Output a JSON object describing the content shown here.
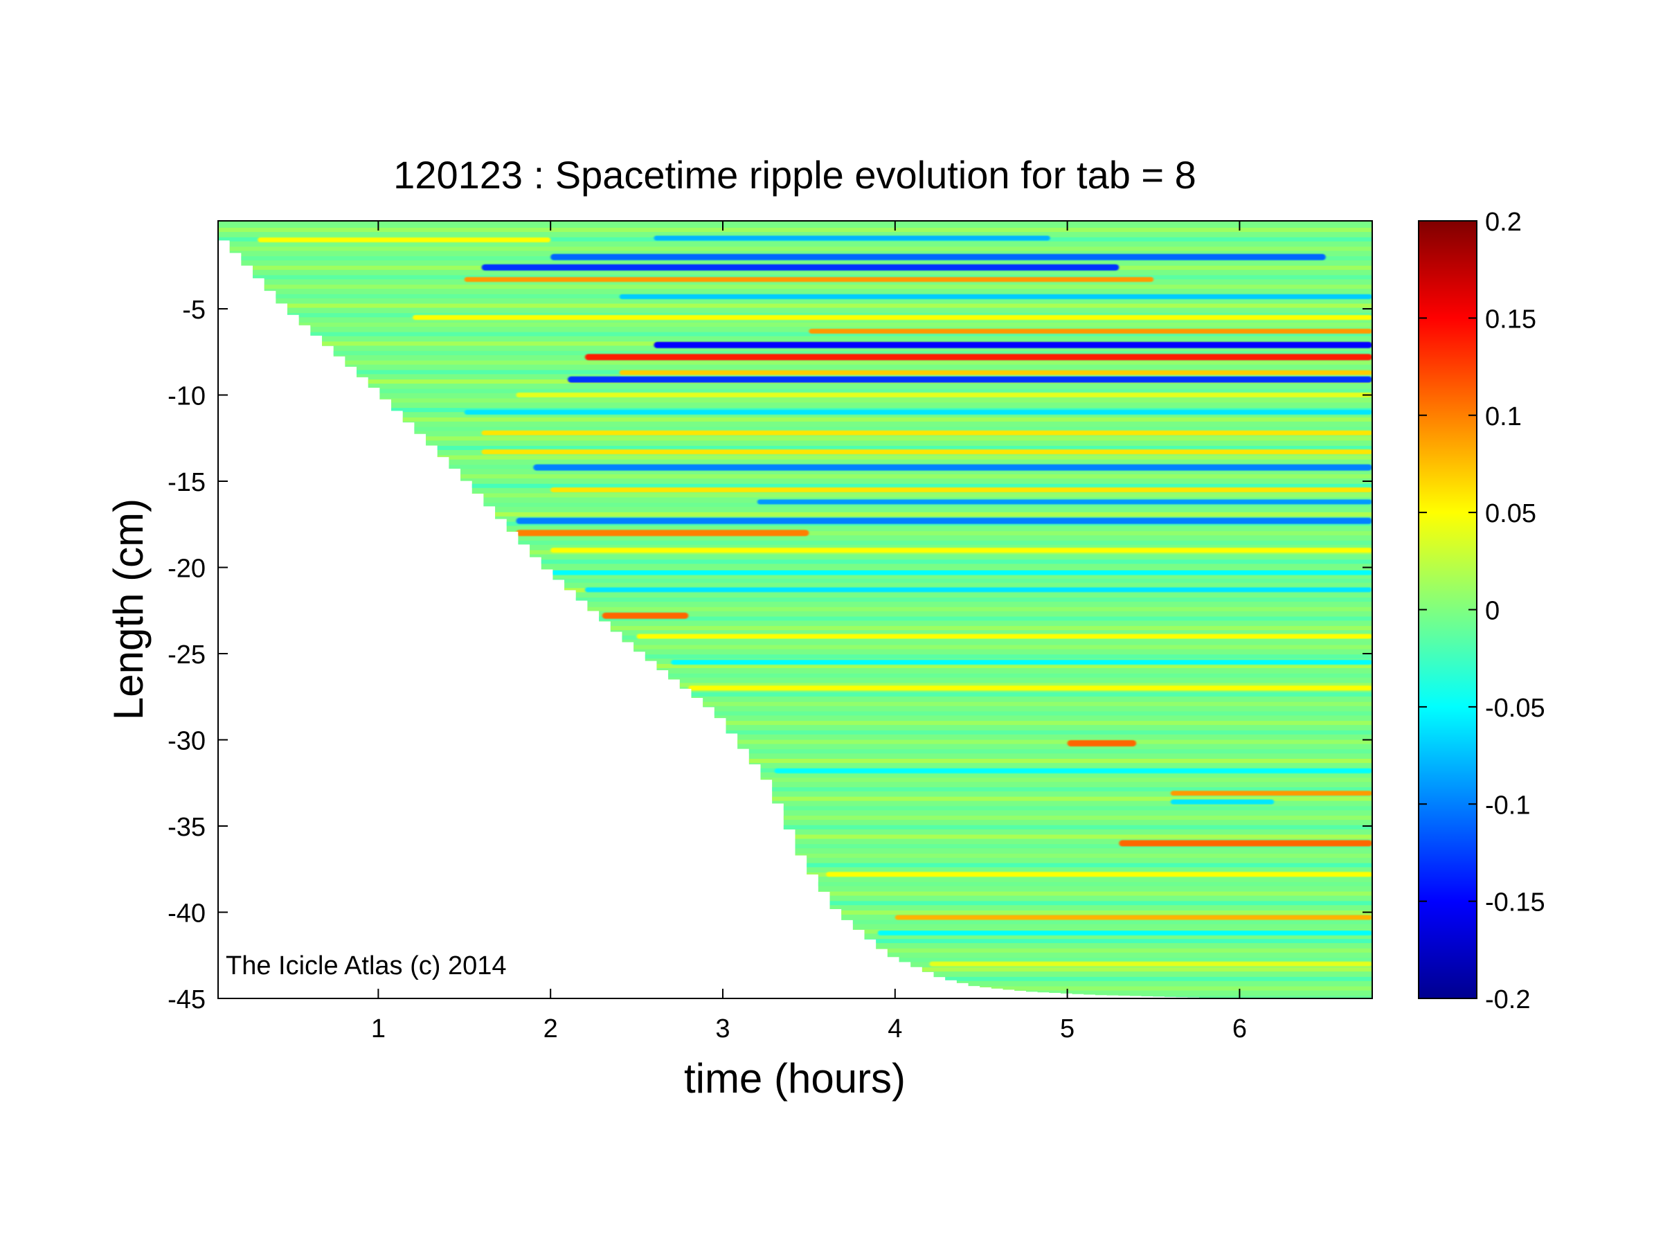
{
  "chart_data": {
    "type": "heatmap",
    "title": "120123 : Spacetime ripple evolution for tab = 8",
    "xlabel": "time (hours)",
    "ylabel": "Length (cm)",
    "xlim": [
      0.07,
      6.77
    ],
    "ylim": [
      -45,
      0.1
    ],
    "x_ticks": [
      1,
      2,
      3,
      4,
      5,
      6
    ],
    "x_tick_labels": [
      "1",
      "2",
      "3",
      "4",
      "5",
      "6"
    ],
    "y_ticks": [
      -5,
      -10,
      -15,
      -20,
      -25,
      -30,
      -35,
      -40,
      -45
    ],
    "y_tick_labels": [
      "-5",
      "-10",
      "-15",
      "-20",
      "-25",
      "-30",
      "-35",
      "-40",
      "-45"
    ],
    "colorbar": {
      "colormap": "jet",
      "clim": [
        -0.2,
        0.2
      ],
      "ticks": [
        0.2,
        0.15,
        0.1,
        0.05,
        0,
        -0.05,
        -0.1,
        -0.15,
        -0.2
      ],
      "tick_labels": [
        "0.2",
        "0.15",
        "0.1",
        "0.05",
        "0",
        "-0.05",
        "-0.1",
        "-0.15",
        "-0.2"
      ]
    },
    "annotation": "The Icicle Atlas (c) 2014",
    "grid": false,
    "data_boundary": {
      "description": "icicle tip position vs time; no data below the tip",
      "time_hours": [
        0.07,
        0.5,
        1.0,
        1.5,
        2.0,
        2.5,
        3.0,
        3.3,
        3.5,
        3.7,
        4.0,
        4.3,
        4.5,
        4.8,
        5.2,
        6.0,
        6.77
      ],
      "tip_length_cm": [
        -0.3,
        -5.0,
        -9.5,
        -14.5,
        -20.0,
        -24.5,
        -28.5,
        -32.5,
        -37.0,
        -40.0,
        -42.5,
        -43.8,
        -44.3,
        -44.6,
        -44.8,
        -45.0,
        -45.0
      ]
    },
    "ripple_bands": [
      {
        "y": -0.9,
        "t_start": 2.6,
        "t_end": 4.9,
        "value": -0.08
      },
      {
        "y": -1.0,
        "t_start": 0.3,
        "t_end": 2.0,
        "value": 0.05
      },
      {
        "y": -2.0,
        "t_start": 2.0,
        "t_end": 6.5,
        "value": -0.11
      },
      {
        "y": -2.6,
        "t_start": 1.6,
        "t_end": 5.3,
        "value": -0.13
      },
      {
        "y": -3.3,
        "t_start": 1.5,
        "t_end": 5.5,
        "value": 0.09
      },
      {
        "y": -4.3,
        "t_start": 2.4,
        "t_end": 6.77,
        "value": -0.07
      },
      {
        "y": -5.5,
        "t_start": 1.2,
        "t_end": 6.77,
        "value": 0.05
      },
      {
        "y": -6.3,
        "t_start": 3.5,
        "t_end": 6.77,
        "value": 0.09
      },
      {
        "y": -7.1,
        "t_start": 2.6,
        "t_end": 6.77,
        "value": -0.15
      },
      {
        "y": -7.8,
        "t_start": 2.2,
        "t_end": 6.77,
        "value": 0.14
      },
      {
        "y": -8.7,
        "t_start": 2.4,
        "t_end": 6.77,
        "value": 0.07
      },
      {
        "y": -9.1,
        "t_start": 2.1,
        "t_end": 6.77,
        "value": -0.13
      },
      {
        "y": -10.0,
        "t_start": 1.8,
        "t_end": 6.77,
        "value": 0.04
      },
      {
        "y": -11.0,
        "t_start": 1.5,
        "t_end": 6.77,
        "value": -0.06
      },
      {
        "y": -12.2,
        "t_start": 1.6,
        "t_end": 6.77,
        "value": 0.06
      },
      {
        "y": -13.3,
        "t_start": 1.6,
        "t_end": 6.77,
        "value": 0.06
      },
      {
        "y": -14.2,
        "t_start": 1.9,
        "t_end": 6.77,
        "value": -0.1
      },
      {
        "y": -15.5,
        "t_start": 2.0,
        "t_end": 6.77,
        "value": 0.06
      },
      {
        "y": -16.2,
        "t_start": 3.2,
        "t_end": 6.77,
        "value": -0.09
      },
      {
        "y": -17.3,
        "t_start": 1.8,
        "t_end": 6.77,
        "value": -0.1
      },
      {
        "y": -18.0,
        "t_start": 1.8,
        "t_end": 3.5,
        "value": 0.1
      },
      {
        "y": -19.0,
        "t_start": 2.0,
        "t_end": 6.77,
        "value": 0.05
      },
      {
        "y": -20.3,
        "t_start": 2.0,
        "t_end": 6.77,
        "value": -0.05
      },
      {
        "y": -21.3,
        "t_start": 2.2,
        "t_end": 6.77,
        "value": -0.06
      },
      {
        "y": -22.8,
        "t_start": 2.3,
        "t_end": 2.8,
        "value": 0.11
      },
      {
        "y": -24.0,
        "t_start": 2.5,
        "t_end": 6.77,
        "value": 0.05
      },
      {
        "y": -25.5,
        "t_start": 2.7,
        "t_end": 6.77,
        "value": -0.05
      },
      {
        "y": -27.0,
        "t_start": 2.8,
        "t_end": 6.77,
        "value": 0.05
      },
      {
        "y": -30.2,
        "t_start": 5.0,
        "t_end": 5.4,
        "value": 0.11
      },
      {
        "y": -31.8,
        "t_start": 3.3,
        "t_end": 6.77,
        "value": -0.05
      },
      {
        "y": -33.1,
        "t_start": 5.6,
        "t_end": 6.77,
        "value": 0.09
      },
      {
        "y": -33.6,
        "t_start": 5.6,
        "t_end": 6.2,
        "value": -0.06
      },
      {
        "y": -36.0,
        "t_start": 5.3,
        "t_end": 6.77,
        "value": 0.11
      },
      {
        "y": -37.8,
        "t_start": 3.6,
        "t_end": 6.77,
        "value": 0.05
      },
      {
        "y": -40.3,
        "t_start": 4.0,
        "t_end": 6.77,
        "value": 0.08
      },
      {
        "y": -41.2,
        "t_start": 3.9,
        "t_end": 6.77,
        "value": -0.05
      },
      {
        "y": -43.0,
        "t_start": 4.2,
        "t_end": 6.77,
        "value": 0.04
      }
    ]
  }
}
